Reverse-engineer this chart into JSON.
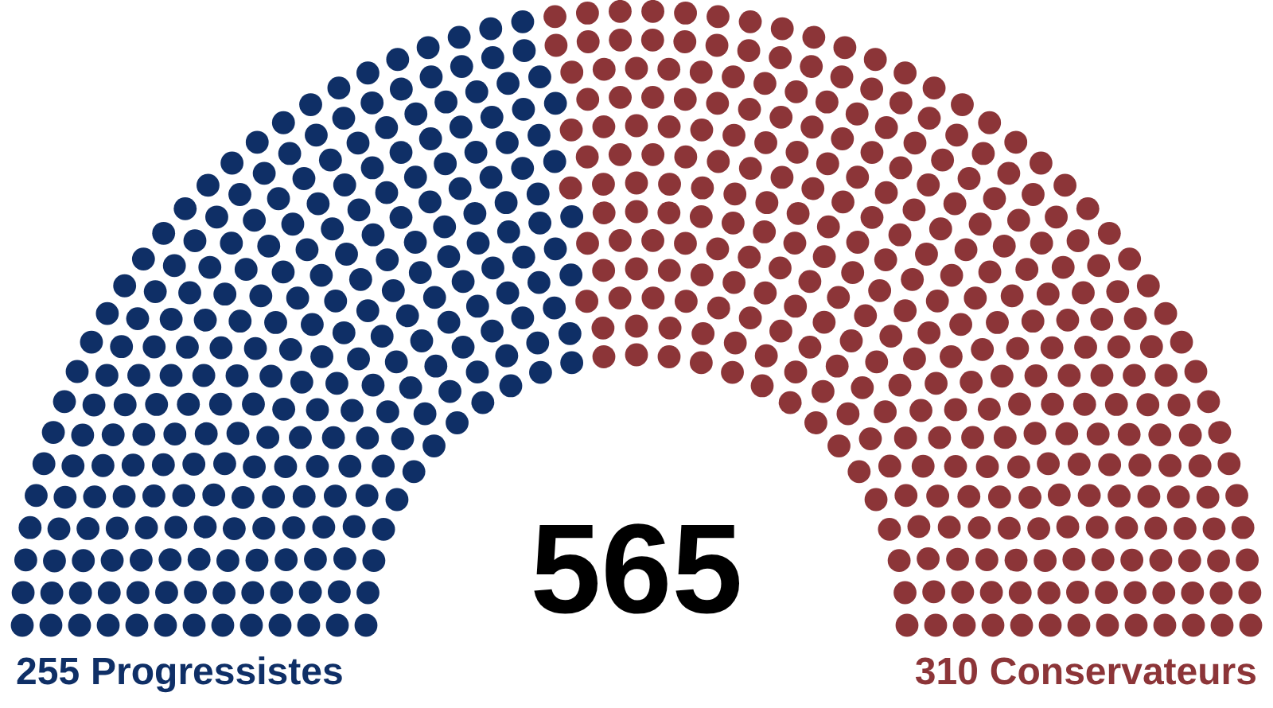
{
  "chart_data": {
    "type": "other",
    "categories": [
      "Progressistes",
      "Conservateurs"
    ],
    "values": [
      255,
      310
    ],
    "colors": [
      "#0f2f66",
      "#8c3538"
    ],
    "value_labels": [
      "255",
      "310"
    ],
    "annotations": [
      "565"
    ]
  }
}
